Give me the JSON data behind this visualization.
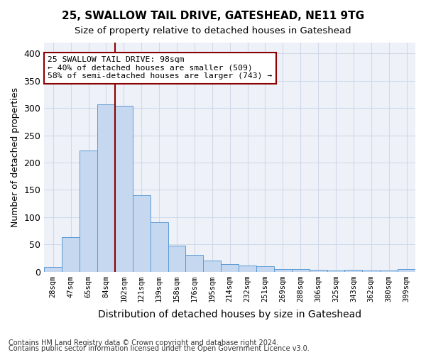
{
  "title1": "25, SWALLOW TAIL DRIVE, GATESHEAD, NE11 9TG",
  "title2": "Size of property relative to detached houses in Gateshead",
  "xlabel": "Distribution of detached houses by size in Gateshead",
  "ylabel": "Number of detached properties",
  "categories": [
    "28sqm",
    "47sqm",
    "65sqm",
    "84sqm",
    "102sqm",
    "121sqm",
    "139sqm",
    "158sqm",
    "176sqm",
    "195sqm",
    "214sqm",
    "232sqm",
    "251sqm",
    "269sqm",
    "288sqm",
    "306sqm",
    "325sqm",
    "343sqm",
    "362sqm",
    "380sqm",
    "399sqm"
  ],
  "values": [
    8,
    63,
    222,
    307,
    304,
    140,
    90,
    47,
    30,
    20,
    14,
    11,
    10,
    4,
    5,
    3,
    2,
    3,
    2,
    2,
    5
  ],
  "bar_color": "#c5d8f0",
  "bar_edge_color": "#5b9bd5",
  "vline_index": 4,
  "vline_color": "#8b0000",
  "annotation_text": "25 SWALLOW TAIL DRIVE: 98sqm\n← 40% of detached houses are smaller (509)\n58% of semi-detached houses are larger (743) →",
  "annotation_box_color": "white",
  "annotation_box_edge_color": "#8b0000",
  "footnote1": "Contains HM Land Registry data © Crown copyright and database right 2024.",
  "footnote2": "Contains public sector information licensed under the Open Government Licence v3.0.",
  "ylim": [
    0,
    420
  ],
  "yticks": [
    0,
    50,
    100,
    150,
    200,
    250,
    300,
    350,
    400
  ],
  "grid_color": "#d0d8e8",
  "bg_color": "#eef2f8"
}
